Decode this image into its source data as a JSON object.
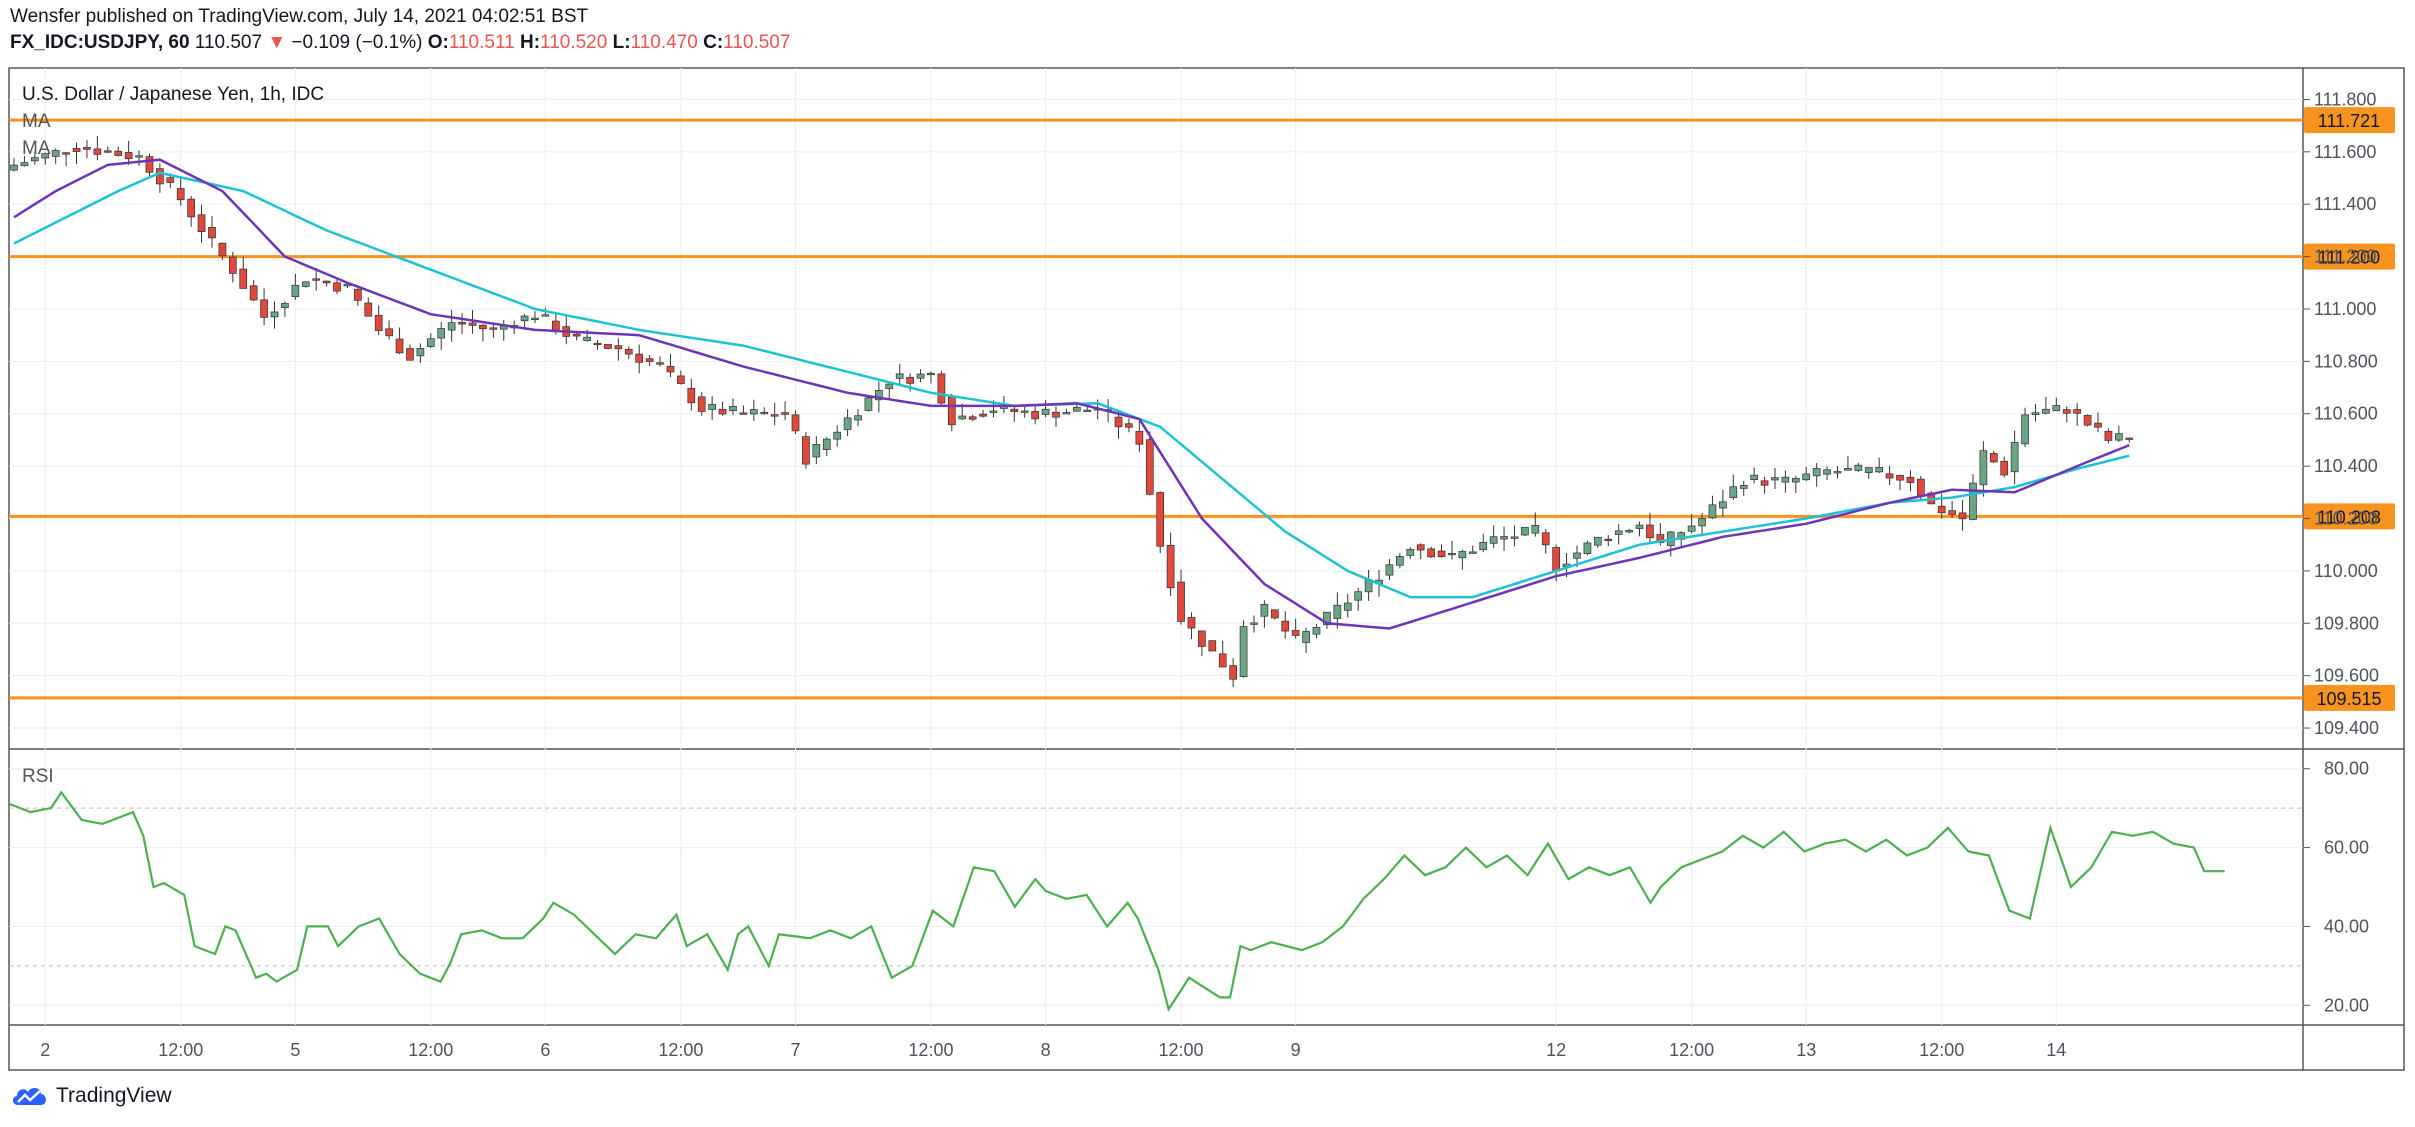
{
  "header": {
    "publisher": "Wensfer published on TradingView.com, July 14, 2021 04:02:51 BST",
    "symbol": "FX_IDC:USDJPY, 60",
    "last": "110.507",
    "change": "−0.109 (−0.1%)",
    "open_label": "O:",
    "open": "110.511",
    "high_label": "H:",
    "high": "110.520",
    "low_label": "L:",
    "low": "110.470",
    "close_label": "C:",
    "close": "110.507"
  },
  "footer": {
    "brand": "TradingView"
  },
  "colors": {
    "up": "#6ba583",
    "down": "#e0483b",
    "ma_fast": "#6e35b8",
    "ma_slow": "#1ec3d3",
    "level": "#f7931e",
    "rsi": "#4caf50"
  },
  "icons": {
    "brand_logo": "tradingview-cloud-icon",
    "change_arrow": "down-triangle-icon"
  },
  "chart_data": [
    {
      "type": "candlestick",
      "title": "U.S. Dollar / Japanese Yen, 1h, IDC",
      "indicator_labels": [
        "MA",
        "MA"
      ],
      "ylim": [
        109.32,
        111.92
      ],
      "y_ticks": [
        "111.800",
        "111.600",
        "111.400",
        "111.200",
        "111.000",
        "110.800",
        "110.600",
        "110.400",
        "110.200",
        "110.000",
        "109.800",
        "109.600",
        "109.400"
      ],
      "x_ticks": [
        "2",
        "12:00",
        "5",
        "12:00",
        "6",
        "12:00",
        "7",
        "12:00",
        "8",
        "12:00",
        "9",
        "12",
        "12:00",
        "13",
        "12:00",
        "14"
      ],
      "x_tick_index": [
        3,
        16,
        27,
        40,
        51,
        64,
        75,
        88,
        99,
        112,
        123,
        148,
        161,
        172,
        185,
        196
      ],
      "bars": 212,
      "levels": [
        {
          "value": 111.721,
          "label": "111.721"
        },
        {
          "value": 111.2,
          "label": "111.200"
        },
        {
          "value": 110.208,
          "label": "110.208"
        },
        {
          "value": 109.515,
          "label": "109.515"
        }
      ],
      "close_anchors": [
        [
          0,
          111.55
        ],
        [
          6,
          111.62
        ],
        [
          12,
          111.58
        ],
        [
          16,
          111.42
        ],
        [
          19,
          111.25
        ],
        [
          21,
          111.15
        ],
        [
          24,
          110.97
        ],
        [
          28,
          111.12
        ],
        [
          32,
          111.08
        ],
        [
          35,
          110.92
        ],
        [
          38,
          110.82
        ],
        [
          42,
          110.95
        ],
        [
          46,
          110.92
        ],
        [
          50,
          110.98
        ],
        [
          54,
          110.88
        ],
        [
          58,
          110.85
        ],
        [
          62,
          110.78
        ],
        [
          66,
          110.62
        ],
        [
          70,
          110.6
        ],
        [
          74,
          110.6
        ],
        [
          76,
          110.43
        ],
        [
          80,
          110.58
        ],
        [
          84,
          110.73
        ],
        [
          88,
          110.75
        ],
        [
          90,
          110.58
        ],
        [
          94,
          110.62
        ],
        [
          98,
          110.6
        ],
        [
          104,
          110.62
        ],
        [
          108,
          110.5
        ],
        [
          110,
          110.1
        ],
        [
          112,
          109.82
        ],
        [
          114,
          109.73
        ],
        [
          117,
          109.6
        ],
        [
          118,
          109.8
        ],
        [
          120,
          109.85
        ],
        [
          123,
          109.73
        ],
        [
          126,
          109.82
        ],
        [
          130,
          109.95
        ],
        [
          134,
          110.1
        ],
        [
          138,
          110.05
        ],
        [
          142,
          110.12
        ],
        [
          146,
          110.15
        ],
        [
          148,
          110.02
        ],
        [
          152,
          110.12
        ],
        [
          156,
          110.18
        ],
        [
          158,
          110.1
        ],
        [
          162,
          110.2
        ],
        [
          166,
          110.35
        ],
        [
          170,
          110.34
        ],
        [
          174,
          110.38
        ],
        [
          178,
          110.38
        ],
        [
          182,
          110.35
        ],
        [
          184,
          110.25
        ],
        [
          187,
          110.2
        ],
        [
          189,
          110.45
        ],
        [
          191,
          110.38
        ],
        [
          193,
          110.6
        ],
        [
          197,
          110.62
        ],
        [
          201,
          110.5
        ],
        [
          203,
          110.51
        ]
      ],
      "ma_fast_anchors": [
        [
          0,
          111.35
        ],
        [
          4,
          111.45
        ],
        [
          9,
          111.55
        ],
        [
          14,
          111.57
        ],
        [
          20,
          111.45
        ],
        [
          26,
          111.2
        ],
        [
          32,
          111.1
        ],
        [
          40,
          110.98
        ],
        [
          50,
          110.92
        ],
        [
          60,
          110.9
        ],
        [
          70,
          110.78
        ],
        [
          80,
          110.68
        ],
        [
          88,
          110.63
        ],
        [
          96,
          110.63
        ],
        [
          102,
          110.64
        ],
        [
          108,
          110.58
        ],
        [
          114,
          110.2
        ],
        [
          120,
          109.95
        ],
        [
          126,
          109.8
        ],
        [
          132,
          109.78
        ],
        [
          140,
          109.88
        ],
        [
          148,
          109.98
        ],
        [
          156,
          110.05
        ],
        [
          164,
          110.13
        ],
        [
          172,
          110.18
        ],
        [
          180,
          110.26
        ],
        [
          186,
          110.31
        ],
        [
          192,
          110.3
        ],
        [
          198,
          110.4
        ],
        [
          203,
          110.48
        ]
      ],
      "ma_slow_anchors": [
        [
          0,
          111.25
        ],
        [
          10,
          111.45
        ],
        [
          14,
          111.52
        ],
        [
          22,
          111.45
        ],
        [
          30,
          111.3
        ],
        [
          40,
          111.15
        ],
        [
          50,
          111.0
        ],
        [
          60,
          110.92
        ],
        [
          70,
          110.86
        ],
        [
          80,
          110.76
        ],
        [
          88,
          110.68
        ],
        [
          96,
          110.63
        ],
        [
          104,
          110.64
        ],
        [
          110,
          110.55
        ],
        [
          116,
          110.35
        ],
        [
          122,
          110.15
        ],
        [
          128,
          110.0
        ],
        [
          134,
          109.9
        ],
        [
          140,
          109.9
        ],
        [
          148,
          110.0
        ],
        [
          156,
          110.1
        ],
        [
          164,
          110.15
        ],
        [
          172,
          110.2
        ],
        [
          180,
          110.26
        ],
        [
          186,
          110.28
        ],
        [
          192,
          110.32
        ],
        [
          198,
          110.39
        ],
        [
          203,
          110.44
        ]
      ]
    },
    {
      "type": "line",
      "title": "RSI",
      "ylim": [
        15,
        85
      ],
      "y_ticks": [
        "80.00",
        "60.00",
        "40.00",
        "20.00"
      ],
      "bands": [
        70,
        30
      ],
      "rsi_anchors": [
        [
          0,
          71
        ],
        [
          2,
          69
        ],
        [
          4,
          70
        ],
        [
          5,
          74
        ],
        [
          7,
          67
        ],
        [
          9,
          66
        ],
        [
          12,
          69
        ],
        [
          13,
          63
        ],
        [
          14,
          50
        ],
        [
          15,
          51
        ],
        [
          17,
          48
        ],
        [
          18,
          35
        ],
        [
          20,
          33
        ],
        [
          21,
          40
        ],
        [
          22,
          39
        ],
        [
          24,
          27
        ],
        [
          25,
          28
        ],
        [
          26,
          26
        ],
        [
          28,
          29
        ],
        [
          29,
          40
        ],
        [
          31,
          40
        ],
        [
          32,
          35
        ],
        [
          34,
          40
        ],
        [
          36,
          42
        ],
        [
          38,
          33
        ],
        [
          40,
          28
        ],
        [
          42,
          26
        ],
        [
          43,
          31
        ],
        [
          44,
          38
        ],
        [
          46,
          39
        ],
        [
          48,
          37
        ],
        [
          50,
          37
        ],
        [
          52,
          42
        ],
        [
          53,
          46
        ],
        [
          55,
          43
        ],
        [
          57,
          38
        ],
        [
          59,
          33
        ],
        [
          61,
          38
        ],
        [
          63,
          37
        ],
        [
          65,
          43
        ],
        [
          66,
          35
        ],
        [
          68,
          38
        ],
        [
          70,
          29
        ],
        [
          71,
          38
        ],
        [
          72,
          40
        ],
        [
          74,
          30
        ],
        [
          75,
          38
        ],
        [
          78,
          37
        ],
        [
          80,
          39
        ],
        [
          82,
          37
        ],
        [
          84,
          40
        ],
        [
          86,
          27
        ],
        [
          88,
          30
        ],
        [
          90,
          44
        ],
        [
          92,
          40
        ],
        [
          94,
          55
        ],
        [
          96,
          54
        ],
        [
          98,
          45
        ],
        [
          100,
          52
        ],
        [
          101,
          49
        ],
        [
          103,
          47
        ],
        [
          105,
          48
        ],
        [
          107,
          40
        ],
        [
          109,
          46
        ],
        [
          110,
          42
        ],
        [
          112,
          29
        ],
        [
          113,
          19
        ],
        [
          115,
          27
        ],
        [
          118,
          22
        ],
        [
          119,
          22
        ],
        [
          120,
          35
        ],
        [
          121,
          34
        ],
        [
          123,
          36
        ],
        [
          126,
          34
        ],
        [
          128,
          36
        ],
        [
          130,
          40
        ],
        [
          132,
          47
        ],
        [
          134,
          52
        ],
        [
          136,
          58
        ],
        [
          138,
          53
        ],
        [
          140,
          55
        ],
        [
          142,
          60
        ],
        [
          144,
          55
        ],
        [
          146,
          58
        ],
        [
          148,
          53
        ],
        [
          150,
          61
        ],
        [
          152,
          52
        ],
        [
          154,
          55
        ],
        [
          156,
          53
        ],
        [
          158,
          55
        ],
        [
          160,
          46
        ],
        [
          161,
          50
        ],
        [
          163,
          55
        ],
        [
          165,
          57
        ],
        [
          167,
          59
        ],
        [
          169,
          63
        ],
        [
          171,
          60
        ],
        [
          173,
          64
        ],
        [
          175,
          59
        ],
        [
          177,
          61
        ],
        [
          179,
          62
        ],
        [
          181,
          59
        ],
        [
          183,
          62
        ],
        [
          185,
          58
        ],
        [
          187,
          60
        ],
        [
          189,
          65
        ],
        [
          191,
          59
        ],
        [
          193,
          58
        ],
        [
          195,
          44
        ],
        [
          197,
          42
        ],
        [
          199,
          65
        ],
        [
          201,
          50
        ],
        [
          203,
          55
        ],
        [
          205,
          64
        ],
        [
          207,
          63
        ],
        [
          209,
          64
        ],
        [
          211,
          61
        ],
        [
          213,
          60
        ],
        [
          214,
          54
        ],
        [
          216,
          54
        ]
      ]
    }
  ]
}
